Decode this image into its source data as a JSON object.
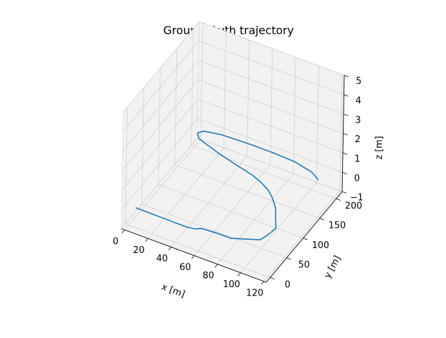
{
  "chart_data": {
    "type": "line3d",
    "title": "Ground Truth trajectory",
    "xlabel": "x [m]",
    "ylabel": "y [m]",
    "zlabel": "z [m]",
    "x_ticks": [
      "0",
      "20",
      "40",
      "60",
      "80",
      "100",
      "120"
    ],
    "y_ticks": [
      "0",
      "50",
      "100",
      "150",
      "200"
    ],
    "z_ticks": [
      "−1",
      "0",
      "1",
      "2",
      "3",
      "4",
      "5"
    ],
    "xlim": [
      -3,
      122
    ],
    "ylim": [
      -12,
      218
    ],
    "zlim": [
      -1,
      5
    ],
    "grid": true,
    "color": "#1f77b4",
    "pane_color": "#f2f2f2",
    "series": [
      {
        "x": [
          6,
          50,
          57,
          60,
          74,
          85,
          105,
          107,
          108,
          109,
          103,
          98,
          90,
          83,
          74,
          64,
          48,
          30,
          18,
          9,
          5,
          8,
          22,
          48,
          66,
          85,
          102,
          110
        ],
        "y": [
          1,
          0,
          3,
          8,
          10,
          10,
          28,
          40,
          50,
          62,
          82,
          100,
          118,
          130,
          140,
          148,
          156,
          166,
          174,
          180,
          190,
          198,
          204,
          206,
          206,
          204,
          196,
          186
        ],
        "z": [
          0,
          0,
          0,
          0,
          0,
          0,
          0,
          0,
          0,
          0,
          0,
          0,
          0,
          0,
          0,
          0,
          0,
          0,
          0,
          0,
          0,
          0,
          0,
          0,
          0,
          0,
          0,
          0
        ]
      }
    ]
  }
}
